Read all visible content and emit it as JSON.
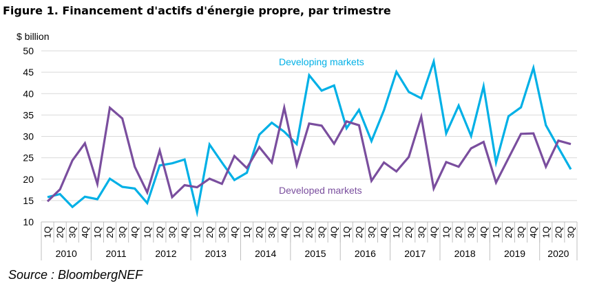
{
  "figure_title": "Figure 1. Financement d'actifs d'énergie propre, par trimestre",
  "source": "Source : BloombergNEF",
  "colors": {
    "developing": "#00B0E6",
    "developed": "#7A4E9E",
    "grid": "#D9D9D9",
    "axis": "#BFBFBF"
  },
  "chart_data": {
    "type": "line",
    "ylabel": "$ billion",
    "ylim": [
      10,
      50
    ],
    "yticks": [
      10,
      15,
      20,
      25,
      30,
      35,
      40,
      45,
      50
    ],
    "grid": true,
    "quarter_labels": [
      "1Q",
      "2Q",
      "3Q",
      "4Q",
      "1Q",
      "2Q",
      "3Q",
      "4Q",
      "1Q",
      "2Q",
      "3Q",
      "4Q",
      "1Q",
      "2Q",
      "3Q",
      "4Q",
      "1Q",
      "2Q",
      "3Q",
      "4Q",
      "1Q",
      "2Q",
      "3Q",
      "4Q",
      "1Q",
      "2Q",
      "3Q",
      "4Q",
      "1Q",
      "2Q",
      "3Q",
      "4Q",
      "1Q",
      "2Q",
      "3Q",
      "4Q",
      "1Q",
      "2Q",
      "3Q",
      "4Q",
      "1Q",
      "2Q",
      "3Q"
    ],
    "years": [
      {
        "label": "2010",
        "quarters": 4
      },
      {
        "label": "2011",
        "quarters": 4
      },
      {
        "label": "2012",
        "quarters": 4
      },
      {
        "label": "2013",
        "quarters": 4
      },
      {
        "label": "2014",
        "quarters": 4
      },
      {
        "label": "2015",
        "quarters": 4
      },
      {
        "label": "2016",
        "quarters": 4
      },
      {
        "label": "2017",
        "quarters": 4
      },
      {
        "label": "2018",
        "quarters": 4
      },
      {
        "label": "2019",
        "quarters": 4
      },
      {
        "label": "2020",
        "quarters": 3
      }
    ],
    "series": [
      {
        "name": "Developing markets",
        "color": "#00B0E6",
        "values": [
          15.8,
          16.5,
          13.5,
          15.9,
          15.3,
          20.1,
          18.2,
          17.8,
          14.4,
          23.2,
          23.7,
          24.6,
          12.3,
          28.1,
          23.9,
          19.8,
          21.5,
          30.4,
          33.2,
          31.1,
          28.2,
          44.3,
          40.7,
          41.9,
          31.9,
          36.2,
          28.9,
          36.1,
          45.1,
          40.4,
          38.9,
          47.5,
          30.7,
          37.2,
          30.1,
          41.7,
          23.9,
          34.7,
          36.8,
          46.0,
          32.6,
          27.4,
          22.3
        ]
      },
      {
        "name": "Developed markets",
        "color": "#7A4E9E",
        "values": [
          14.8,
          17.6,
          24.4,
          28.4,
          18.9,
          36.7,
          34.2,
          22.9,
          16.9,
          26.7,
          15.8,
          18.6,
          18.1,
          20.1,
          18.9,
          25.4,
          22.6,
          27.5,
          23.9,
          36.7,
          23.3,
          33.0,
          32.5,
          28.3,
          33.5,
          32.6,
          19.6,
          23.9,
          21.8,
          25.2,
          34.6,
          17.8,
          24.0,
          22.9,
          27.2,
          28.7,
          19.2,
          24.9,
          30.6,
          30.7,
          22.9,
          29.0,
          28.2
        ]
      }
    ]
  }
}
